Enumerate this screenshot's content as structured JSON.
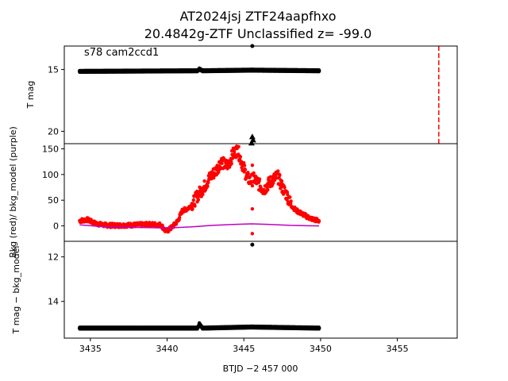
{
  "header": {
    "title_line1": "AT2024jsj  ZTF24aapfhxo",
    "title_line2": "20.4842g-ZTF Unclassified z= -99.0",
    "annotation": "s78 cam2ccd1"
  },
  "colors": {
    "tmag": "#000000",
    "bkg": "#ff0000",
    "bkg_model": "#bf00bf",
    "discovery_line": "#ff0000"
  },
  "chart_data": [
    {
      "type": "scatter",
      "panel": "top",
      "ylabel": "T mag",
      "y_inverted": true,
      "xlim": [
        3433.3,
        3458.9
      ],
      "ylim": [
        21.0,
        13.1
      ],
      "yticks": [
        15,
        20
      ],
      "x_range": [
        3434.3,
        3449.9
      ],
      "baseline": [
        [
          3434.3,
          15.15
        ],
        [
          3442.0,
          15.1
        ],
        [
          3442.1,
          14.95
        ],
        [
          3442.3,
          15.1
        ],
        [
          3445.5,
          15.05
        ],
        [
          3449.9,
          15.1
        ]
      ],
      "outliers_points": [
        [
          3445.55,
          13.1
        ]
      ],
      "outliers_triangles": [
        [
          3445.55,
          20.45
        ],
        [
          3445.6,
          20.7
        ],
        [
          3445.5,
          20.95
        ]
      ],
      "vline_x": 3457.7
    },
    {
      "type": "line",
      "panel": "middle",
      "ylabel": "Bkg (red)/ bkg_model (purple)",
      "xlim": [
        3433.3,
        3458.9
      ],
      "ylim": [
        -30,
        160
      ],
      "yticks": [
        0,
        50,
        100,
        150
      ],
      "series": [
        {
          "key": "bkg",
          "x": [
            3434.3,
            3434.8,
            3435.3,
            3435.8,
            3436.3,
            3437.0,
            3438.0,
            3439.0,
            3439.6,
            3439.9,
            3440.1,
            3440.4,
            3440.7,
            3441.0,
            3441.3,
            3441.6,
            3442.0,
            3442.4,
            3442.8,
            3443.2,
            3443.5,
            3443.8,
            3444.0,
            3444.3,
            3444.6,
            3444.9,
            3445.2,
            3445.4,
            3445.7,
            3446.0,
            3446.3,
            3446.6,
            3446.9,
            3447.2,
            3447.5,
            3447.8,
            3448.1,
            3448.4,
            3448.7,
            3449.0,
            3449.3,
            3449.6,
            3449.9
          ],
          "y": [
            10,
            12,
            5,
            2,
            1,
            1,
            2,
            3,
            2,
            -10,
            -8,
            0,
            10,
            30,
            33,
            40,
            60,
            75,
            95,
            108,
            125,
            118,
            120,
            140,
            148,
            120,
            95,
            88,
            92,
            80,
            70,
            82,
            90,
            97,
            75,
            60,
            40,
            30,
            25,
            20,
            15,
            12,
            10
          ],
          "outliers": [
            [
              3445.55,
              118
            ],
            [
              3445.55,
              33
            ],
            [
              3445.55,
              -15
            ]
          ]
        },
        {
          "key": "bkg_model",
          "x": [
            3434.3,
            3436.0,
            3438.0,
            3440.0,
            3441.5,
            3443.0,
            3444.5,
            3445.5,
            3446.5,
            3448.0,
            3449.9
          ],
          "y": [
            2,
            -2,
            -3,
            -4,
            -2,
            1,
            3,
            4,
            3,
            1,
            0
          ]
        }
      ]
    },
    {
      "type": "scatter",
      "panel": "bottom",
      "ylabel": "T mag − bkg_model",
      "y_inverted": true,
      "xlabel": "BTJD −2 457 000",
      "xlim": [
        3433.3,
        3458.9
      ],
      "ylim": [
        15.65,
        11.3
      ],
      "yticks": [
        12,
        14
      ],
      "xticks": [
        3435,
        3440,
        3445,
        3450,
        3455
      ],
      "baseline": [
        [
          3434.3,
          15.2
        ],
        [
          3442.0,
          15.2
        ],
        [
          3442.1,
          15.0
        ],
        [
          3442.3,
          15.2
        ],
        [
          3445.5,
          15.15
        ],
        [
          3449.9,
          15.2
        ]
      ],
      "outliers_points": [
        [
          3445.55,
          11.45
        ]
      ]
    }
  ]
}
